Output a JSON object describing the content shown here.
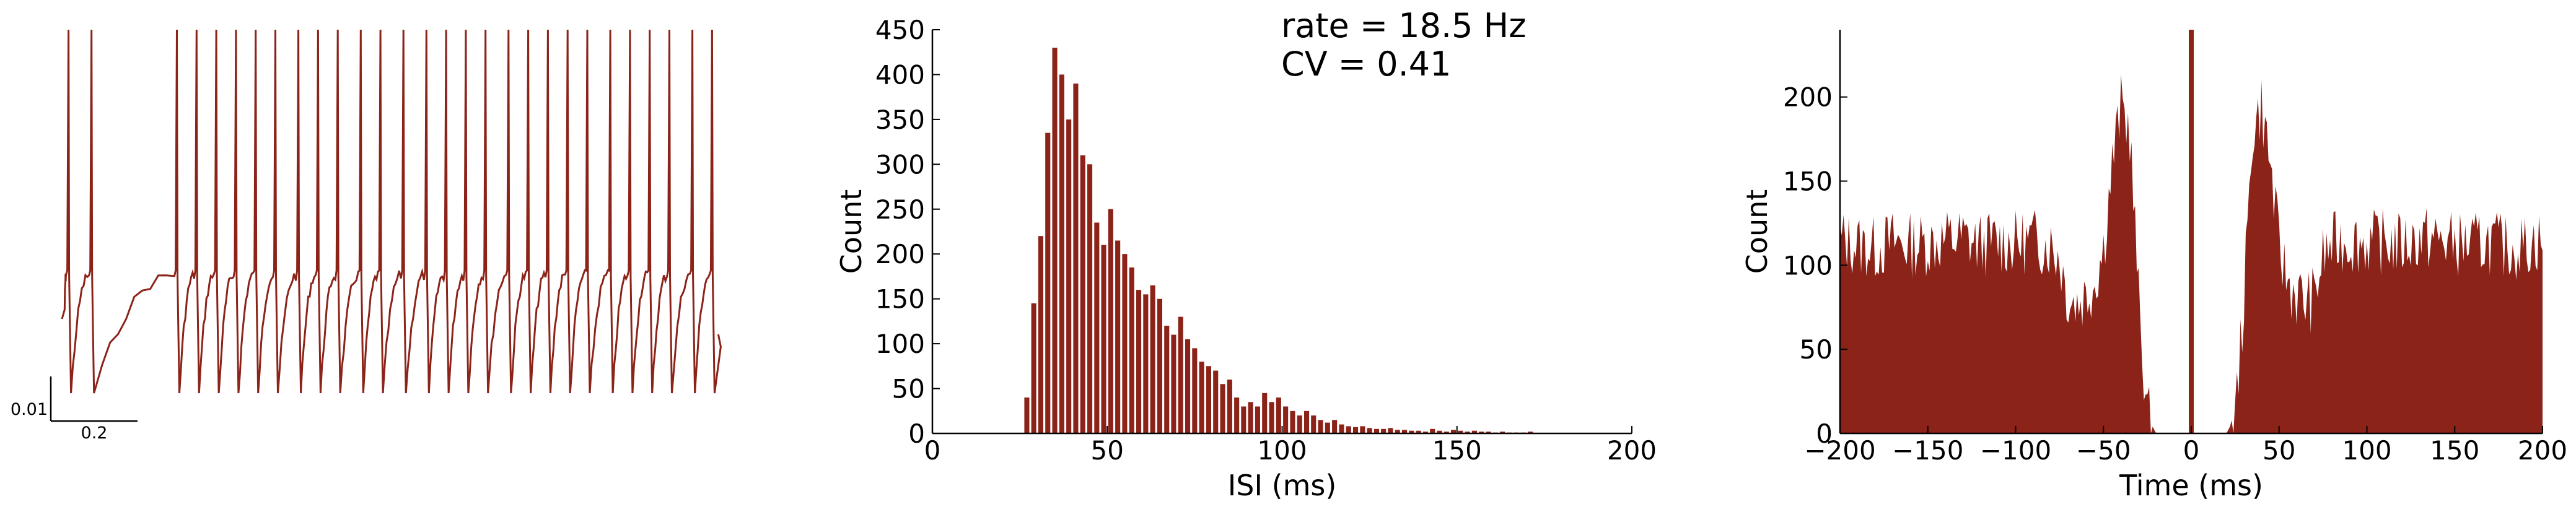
{
  "colors": {
    "trace": "#8b2319",
    "axis": "#000000"
  },
  "chart_data": [
    {
      "type": "line",
      "title": "",
      "scalebar": {
        "y_value": 0.01,
        "x_value": 0.2,
        "y_label": "0.01",
        "x_label": "0.2"
      },
      "spike_times_frac": [
        0.01,
        0.045,
        0.175,
        0.205,
        0.235,
        0.265,
        0.295,
        0.325,
        0.36,
        0.39,
        0.42,
        0.455,
        0.485,
        0.52,
        0.555,
        0.585,
        0.615,
        0.645,
        0.68,
        0.71,
        0.74,
        0.77,
        0.8,
        0.835,
        0.865,
        0.895,
        0.925,
        0.96,
        0.99
      ],
      "baseline": 0.0,
      "spike_peak": 1.0,
      "trough": -0.45
    },
    {
      "type": "bar",
      "xlabel": "ISI (ms)",
      "ylabel": "Count",
      "xlim": [
        0,
        200
      ],
      "ylim": [
        0,
        450
      ],
      "xticks": [
        0,
        50,
        100,
        150,
        200
      ],
      "yticks": [
        0,
        50,
        100,
        150,
        200,
        250,
        300,
        350,
        400,
        450
      ],
      "bin_width": 2,
      "annotations": [
        "rate = 18.5 Hz",
        "CV = 0.41"
      ],
      "x": [
        27,
        29,
        31,
        33,
        35,
        37,
        39,
        41,
        43,
        45,
        47,
        49,
        51,
        53,
        55,
        57,
        59,
        61,
        63,
        65,
        67,
        69,
        71,
        73,
        75,
        77,
        79,
        81,
        83,
        85,
        87,
        89,
        91,
        93,
        95,
        97,
        99,
        101,
        103,
        105,
        107,
        109,
        111,
        113,
        115,
        117,
        119,
        121,
        123,
        125,
        127,
        129,
        131,
        133,
        135,
        137,
        139,
        141,
        143,
        145,
        147,
        149,
        151,
        153,
        155,
        157,
        159,
        161,
        163,
        165,
        167,
        169,
        171
      ],
      "values": [
        40,
        145,
        220,
        335,
        430,
        400,
        350,
        390,
        310,
        300,
        235,
        210,
        250,
        215,
        200,
        185,
        160,
        155,
        165,
        150,
        120,
        110,
        130,
        105,
        95,
        80,
        75,
        70,
        55,
        60,
        40,
        30,
        35,
        30,
        45,
        35,
        40,
        30,
        25,
        20,
        25,
        20,
        15,
        12,
        15,
        10,
        8,
        7,
        8,
        6,
        5,
        5,
        6,
        4,
        4,
        3,
        3,
        2,
        5,
        3,
        2,
        4,
        3,
        2,
        3,
        2,
        2,
        1,
        2,
        1,
        1,
        1,
        2
      ]
    },
    {
      "type": "area",
      "xlabel": "Time (ms)",
      "ylabel": "Count",
      "xlim": [
        -200,
        200
      ],
      "ylim": [
        0,
        240
      ],
      "xticks": [
        -200,
        -150,
        -100,
        -50,
        0,
        50,
        100,
        150,
        200
      ],
      "yticks": [
        0,
        50,
        100,
        150,
        200
      ],
      "zero_lag_value": 240,
      "x": [
        -200,
        -190,
        -180,
        -170,
        -160,
        -150,
        -140,
        -130,
        -120,
        -110,
        -100,
        -90,
        -80,
        -75,
        -70,
        -65,
        -60,
        -55,
        -50,
        -45,
        -40,
        -35,
        -30,
        -25,
        -20,
        -15,
        -10,
        -5,
        0,
        5,
        10,
        15,
        20,
        25,
        30,
        35,
        40,
        45,
        50,
        55,
        60,
        65,
        70,
        75,
        80,
        90,
        100,
        110,
        120,
        130,
        140,
        150,
        160,
        170,
        180,
        190,
        200
      ],
      "values": [
        115,
        112,
        110,
        114,
        112,
        113,
        115,
        116,
        112,
        114,
        113,
        115,
        112,
        105,
        80,
        78,
        82,
        90,
        110,
        160,
        195,
        180,
        80,
        10,
        0,
        0,
        0,
        0,
        0,
        0,
        0,
        0,
        0,
        10,
        80,
        180,
        195,
        160,
        110,
        90,
        82,
        78,
        80,
        105,
        112,
        115,
        113,
        114,
        112,
        116,
        115,
        113,
        112,
        114,
        110,
        112,
        115
      ]
    }
  ]
}
